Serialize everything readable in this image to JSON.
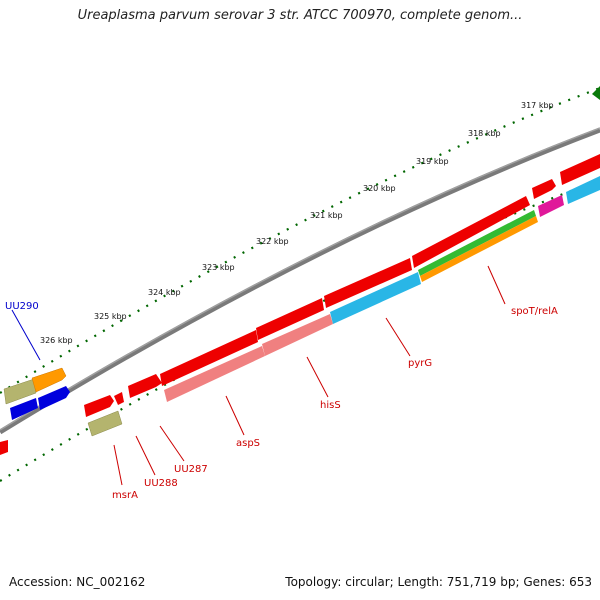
{
  "title": "Ureaplasma parvum serovar 3 str. ATCC 700970, complete genom...",
  "footer": {
    "accession": "Accession: NC_002162",
    "stats": "Topology: circular; Length: 751,719 bp; Genes: 653"
  },
  "ruler_labels": [
    "317 kbp",
    "318 kbp",
    "319 kbp",
    "320 kbp",
    "321 kbp",
    "322 kbp",
    "323 kbp",
    "324 kbp",
    "325 kbp",
    "326 kbp"
  ],
  "gene_labels": {
    "uu290": "UU290",
    "spot": "spoT/relA",
    "pyrg": "pyrG",
    "hiss": "hisS",
    "asps": "aspS",
    "uu287": "UU287",
    "uu288": "UU288",
    "msra": "msrA"
  },
  "colors": {
    "backbone": "#7a7a7a",
    "cds_red": "#ee0000",
    "pink": "#f08080",
    "cyan": "#29b6e6",
    "green": "#33bb33",
    "orange": "#ff9900",
    "olive": "#b4b46e",
    "blue": "#0000dd",
    "magenta": "#e0189a",
    "tick_green": "#006600",
    "label_red": "#cc0000",
    "label_blue": "#0000cc"
  }
}
